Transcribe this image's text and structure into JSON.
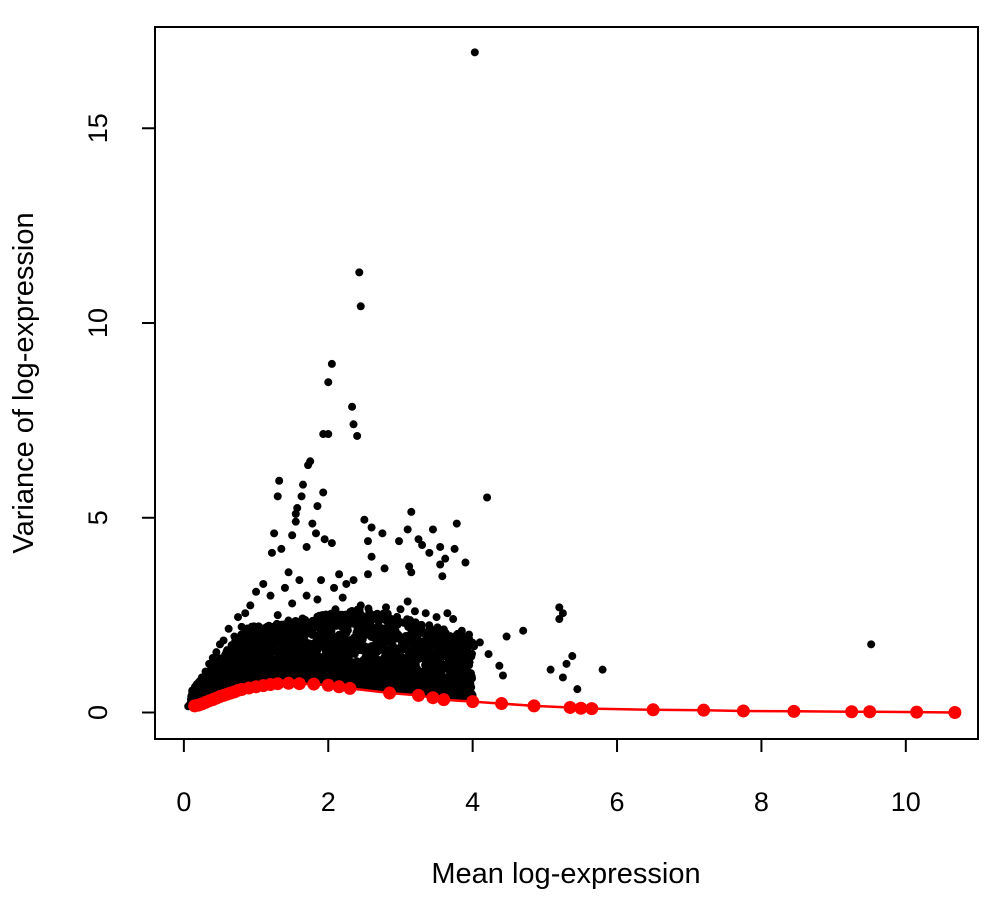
{
  "chart_data": {
    "type": "scatter",
    "title": "",
    "xlabel": "Mean log-expression",
    "ylabel": "Variance of log-expression",
    "xlim": [
      -0.4,
      11.0
    ],
    "ylim": [
      -0.68,
      17.6
    ],
    "x_ticks": [
      "0",
      "2",
      "4",
      "6",
      "8",
      "10"
    ],
    "y_ticks": [
      "0",
      "5",
      "10",
      "15"
    ],
    "grid": false,
    "legend": "none",
    "colors": {
      "points": "#000000",
      "trend": "#ff0000"
    },
    "series": [
      {
        "kind": "points",
        "values": [
          [
            4.03,
            16.95
          ],
          [
            2.43,
            11.3
          ],
          [
            2.45,
            10.43
          ],
          [
            2.05,
            8.95
          ],
          [
            2.0,
            8.48
          ],
          [
            2.33,
            7.85
          ],
          [
            2.35,
            7.4
          ],
          [
            2.4,
            7.1
          ],
          [
            1.93,
            7.15
          ],
          [
            2.0,
            7.15
          ],
          [
            1.75,
            6.45
          ],
          [
            1.72,
            6.35
          ],
          [
            1.32,
            5.95
          ],
          [
            1.3,
            5.55
          ],
          [
            1.65,
            5.85
          ],
          [
            1.63,
            5.55
          ],
          [
            1.93,
            5.65
          ],
          [
            1.85,
            5.3
          ],
          [
            1.57,
            5.25
          ],
          [
            1.55,
            5.1
          ],
          [
            1.55,
            4.9
          ],
          [
            1.78,
            4.85
          ],
          [
            1.83,
            4.6
          ],
          [
            1.5,
            4.55
          ],
          [
            1.25,
            4.6
          ],
          [
            1.22,
            4.1
          ],
          [
            1.35,
            4.2
          ],
          [
            1.7,
            4.25
          ],
          [
            1.95,
            4.45
          ],
          [
            2.05,
            4.35
          ],
          [
            2.5,
            4.95
          ],
          [
            2.6,
            4.75
          ],
          [
            2.75,
            4.6
          ],
          [
            2.55,
            4.4
          ],
          [
            2.98,
            4.4
          ],
          [
            3.15,
            5.15
          ],
          [
            3.1,
            4.7
          ],
          [
            3.25,
            4.45
          ],
          [
            3.3,
            4.3
          ],
          [
            3.45,
            4.7
          ],
          [
            3.4,
            4.1
          ],
          [
            3.55,
            4.25
          ],
          [
            3.55,
            3.8
          ],
          [
            3.62,
            3.95
          ],
          [
            3.78,
            4.85
          ],
          [
            3.75,
            4.2
          ],
          [
            3.9,
            3.85
          ],
          [
            3.12,
            3.75
          ],
          [
            3.15,
            3.6
          ],
          [
            3.58,
            3.5
          ],
          [
            4.2,
            5.52
          ],
          [
            2.6,
            4.0
          ],
          [
            2.78,
            3.7
          ],
          [
            2.55,
            3.55
          ],
          [
            2.35,
            3.4
          ],
          [
            2.25,
            3.3
          ],
          [
            2.2,
            2.95
          ],
          [
            2.45,
            2.75
          ],
          [
            2.8,
            2.7
          ],
          [
            3.0,
            2.65
          ],
          [
            3.1,
            2.85
          ],
          [
            3.2,
            2.6
          ],
          [
            3.35,
            2.55
          ],
          [
            3.5,
            2.45
          ],
          [
            3.65,
            2.55
          ],
          [
            3.73,
            2.4
          ],
          [
            3.85,
            2.1
          ],
          [
            3.95,
            2.0
          ],
          [
            3.62,
            1.95
          ],
          [
            3.45,
            2.05
          ],
          [
            3.3,
            1.7
          ],
          [
            3.5,
            1.5
          ],
          [
            3.55,
            1.25
          ],
          [
            3.75,
            1.05
          ],
          [
            3.92,
            1.35
          ],
          [
            4.02,
            1.7
          ],
          [
            4.1,
            1.8
          ],
          [
            4.22,
            1.5
          ],
          [
            4.37,
            1.2
          ],
          [
            4.42,
            0.95
          ],
          [
            4.47,
            1.95
          ],
          [
            4.7,
            2.1
          ],
          [
            5.2,
            2.7
          ],
          [
            5.25,
            2.55
          ],
          [
            5.2,
            2.4
          ],
          [
            5.38,
            1.45
          ],
          [
            5.3,
            1.25
          ],
          [
            5.08,
            1.1
          ],
          [
            5.25,
            0.9
          ],
          [
            5.45,
            0.6
          ],
          [
            5.8,
            1.1
          ],
          [
            9.52,
            1.75
          ],
          [
            1.0,
            3.1
          ],
          [
            0.92,
            2.75
          ],
          [
            0.85,
            2.55
          ],
          [
            0.8,
            2.2
          ],
          [
            0.75,
            2.45
          ],
          [
            0.7,
            1.95
          ],
          [
            0.62,
            2.15
          ],
          [
            0.55,
            1.85
          ],
          [
            0.5,
            1.75
          ],
          [
            0.45,
            1.55
          ],
          [
            0.4,
            1.4
          ],
          [
            0.35,
            1.25
          ],
          [
            0.3,
            1.05
          ],
          [
            0.25,
            0.9
          ],
          [
            0.2,
            0.75
          ],
          [
            0.15,
            0.6
          ],
          [
            0.12,
            0.45
          ],
          [
            0.1,
            0.3
          ],
          [
            0.06,
            0.16
          ],
          [
            0.08,
            0.2
          ],
          [
            1.1,
            3.3
          ],
          [
            1.2,
            3.0
          ],
          [
            1.4,
            3.2
          ],
          [
            1.45,
            3.6
          ],
          [
            1.6,
            3.4
          ],
          [
            1.7,
            3.0
          ],
          [
            1.9,
            3.4
          ],
          [
            2.08,
            3.2
          ],
          [
            2.15,
            3.55
          ],
          [
            1.3,
            2.5
          ],
          [
            1.5,
            2.8
          ],
          [
            1.85,
            2.9
          ],
          [
            2.1,
            2.65
          ],
          [
            2.3,
            2.4
          ],
          [
            1.15,
            2.2
          ],
          [
            0.95,
            1.9
          ],
          [
            2.6,
            2.2
          ],
          [
            2.85,
            2.2
          ],
          [
            3.05,
            2.3
          ],
          [
            2.7,
            1.95
          ],
          [
            2.95,
            1.9
          ],
          [
            3.15,
            2.05
          ],
          [
            3.25,
            1.55
          ],
          [
            3.4,
            1.35
          ],
          [
            3.62,
            1.65
          ],
          [
            3.82,
            1.55
          ],
          [
            3.18,
            1.35
          ],
          [
            2.95,
            1.45
          ]
        ]
      },
      {
        "kind": "trend",
        "values": [
          [
            0.15,
            0.17
          ],
          [
            0.2,
            0.19
          ],
          [
            0.25,
            0.22
          ],
          [
            0.3,
            0.26
          ],
          [
            0.35,
            0.3
          ],
          [
            0.4,
            0.33
          ],
          [
            0.45,
            0.37
          ],
          [
            0.5,
            0.41
          ],
          [
            0.55,
            0.44
          ],
          [
            0.6,
            0.47
          ],
          [
            0.65,
            0.5
          ],
          [
            0.7,
            0.53
          ],
          [
            0.75,
            0.57
          ],
          [
            0.8,
            0.59
          ],
          [
            0.9,
            0.63
          ],
          [
            1.0,
            0.66
          ],
          [
            1.1,
            0.69
          ],
          [
            1.2,
            0.72
          ],
          [
            1.3,
            0.74
          ],
          [
            1.45,
            0.75
          ],
          [
            1.6,
            0.74
          ],
          [
            1.8,
            0.73
          ],
          [
            2.0,
            0.7
          ],
          [
            2.15,
            0.66
          ],
          [
            2.3,
            0.62
          ],
          [
            2.85,
            0.5
          ],
          [
            3.25,
            0.44
          ],
          [
            3.45,
            0.38
          ],
          [
            3.6,
            0.33
          ],
          [
            4.0,
            0.28
          ],
          [
            4.4,
            0.23
          ],
          [
            4.85,
            0.17
          ],
          [
            5.35,
            0.13
          ],
          [
            5.5,
            0.11
          ],
          [
            5.65,
            0.1
          ],
          [
            6.5,
            0.07
          ],
          [
            7.2,
            0.06
          ],
          [
            7.75,
            0.04
          ],
          [
            8.45,
            0.03
          ],
          [
            9.25,
            0.02
          ],
          [
            9.5,
            0.02
          ],
          [
            10.15,
            0.01
          ],
          [
            10.68,
            0.0
          ]
        ]
      }
    ]
  }
}
